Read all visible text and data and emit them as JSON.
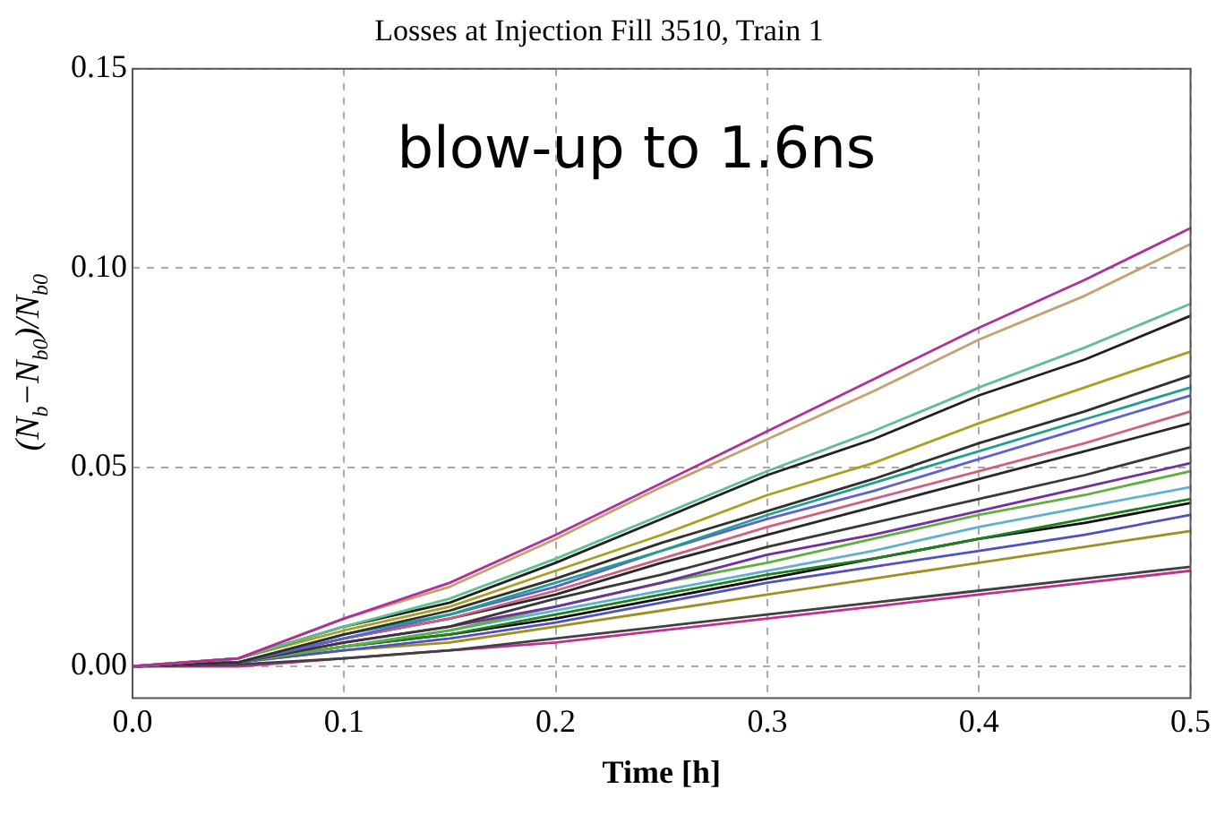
{
  "chart_data": {
    "type": "line",
    "title": "Losses at Injection Fill 3510, Train 1",
    "xlabel": "Time [h]",
    "ylabel": "(N$_{b}$−N$_{b0}$)/N$_{b0}$",
    "annotations": [
      "blow-up to 1.6ns"
    ],
    "x": [
      0,
      0.05,
      0.1,
      0.15,
      0.2,
      0.25,
      0.3,
      0.35,
      0.4,
      0.45,
      0.5
    ],
    "xlim": [
      0,
      0.5
    ],
    "xticks": [
      {
        "value": 0,
        "label": "0.0"
      },
      0.1,
      0.2,
      0.3,
      0.4,
      0.5
    ],
    "ylim": [
      -0.008,
      0.15
    ],
    "yticks": [
      {
        "value": 0,
        "label": "0.00"
      },
      0.05,
      {
        "value": 0.1,
        "label": "0.10"
      },
      0.15
    ],
    "grid": true,
    "legend": false,
    "marker": "none",
    "line_style": "solid",
    "series": [
      {
        "color": "#b0309a",
        "values": [
          0,
          0.002,
          0.012,
          0.021,
          0.033,
          0.046,
          0.059,
          0.072,
          0.085,
          0.097,
          0.11
        ]
      },
      {
        "color": "#c8a070",
        "values": [
          0,
          0.002,
          0.012,
          0.02,
          0.032,
          0.045,
          0.057,
          0.069,
          0.082,
          0.093,
          0.106
        ]
      },
      {
        "color": "#60c090",
        "values": [
          0,
          0.002,
          0.01,
          0.017,
          0.027,
          0.038,
          0.049,
          0.059,
          0.07,
          0.08,
          0.091
        ]
      },
      {
        "color": "#202020",
        "values": [
          0,
          0.002,
          0.01,
          0.016,
          0.026,
          0.037,
          0.048,
          0.057,
          0.068,
          0.077,
          0.088
        ]
      },
      {
        "color": "#a8a020",
        "values": [
          0,
          0.002,
          0.009,
          0.015,
          0.024,
          0.033,
          0.043,
          0.051,
          0.061,
          0.07,
          0.079
        ]
      },
      {
        "color": "#303030",
        "values": [
          0,
          0.001,
          0.008,
          0.014,
          0.022,
          0.031,
          0.039,
          0.047,
          0.056,
          0.064,
          0.073
        ]
      },
      {
        "color": "#20a090",
        "values": [
          0,
          0.001,
          0.008,
          0.013,
          0.021,
          0.029,
          0.038,
          0.046,
          0.054,
          0.062,
          0.07
        ]
      },
      {
        "color": "#6060d0",
        "values": [
          0,
          0.001,
          0.007,
          0.013,
          0.02,
          0.029,
          0.037,
          0.044,
          0.052,
          0.06,
          0.068
        ]
      },
      {
        "color": "#d06080",
        "values": [
          0,
          0.001,
          0.007,
          0.012,
          0.019,
          0.027,
          0.035,
          0.042,
          0.049,
          0.056,
          0.064
        ]
      },
      {
        "color": "#282828",
        "values": [
          0,
          0.001,
          0.007,
          0.012,
          0.018,
          0.026,
          0.033,
          0.04,
          0.047,
          0.054,
          0.061
        ]
      },
      {
        "color": "#383838",
        "values": [
          0,
          0.001,
          0.006,
          0.01,
          0.017,
          0.023,
          0.03,
          0.036,
          0.042,
          0.048,
          0.055
        ]
      },
      {
        "color": "#7030a0",
        "values": [
          0,
          0.001,
          0.006,
          0.01,
          0.015,
          0.021,
          0.028,
          0.033,
          0.039,
          0.045,
          0.051
        ]
      },
      {
        "color": "#60b040",
        "values": [
          0,
          0.001,
          0.005,
          0.009,
          0.015,
          0.021,
          0.026,
          0.032,
          0.038,
          0.043,
          0.049
        ]
      },
      {
        "color": "#60b0d0",
        "values": [
          0,
          0.001,
          0.005,
          0.009,
          0.014,
          0.019,
          0.024,
          0.029,
          0.035,
          0.04,
          0.045
        ]
      },
      {
        "color": "#208020",
        "values": [
          0,
          0.001,
          0.005,
          0.008,
          0.013,
          0.018,
          0.023,
          0.027,
          0.032,
          0.037,
          0.042
        ]
      },
      {
        "color": "#101010",
        "values": [
          0,
          0.001,
          0.005,
          0.008,
          0.012,
          0.017,
          0.022,
          0.027,
          0.032,
          0.036,
          0.041
        ]
      },
      {
        "color": "#5050c0",
        "values": [
          0,
          0.001,
          0.004,
          0.007,
          0.011,
          0.016,
          0.021,
          0.025,
          0.029,
          0.033,
          0.038
        ]
      },
      {
        "color": "#a09020",
        "values": [
          0,
          0.001,
          0.004,
          0.006,
          0.01,
          0.014,
          0.018,
          0.022,
          0.026,
          0.03,
          0.034
        ]
      },
      {
        "color": "#404040",
        "values": [
          0,
          0.0005,
          0.002,
          0.004,
          0.007,
          0.01,
          0.013,
          0.016,
          0.019,
          0.022,
          0.025
        ]
      },
      {
        "color": "#c03090",
        "values": [
          0,
          0,
          0.002,
          0.004,
          0.006,
          0.009,
          0.012,
          0.015,
          0.018,
          0.021,
          0.024
        ]
      }
    ]
  }
}
